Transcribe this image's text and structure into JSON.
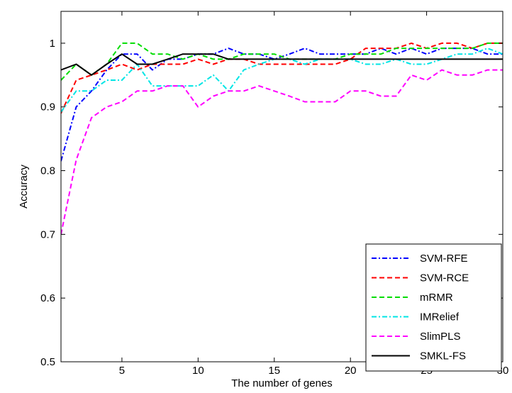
{
  "chart_data": {
    "type": "line",
    "xlabel": "The number of genes",
    "ylabel": "Accuracy",
    "xlim": [
      1,
      30
    ],
    "ylim": [
      0.5,
      1.05
    ],
    "xticks": [
      5,
      10,
      15,
      20,
      25,
      30
    ],
    "yticks": [
      0.5,
      0.6,
      0.7,
      0.8,
      0.9,
      1
    ],
    "ytick_labels": [
      "0.5",
      "0.6",
      "0.7",
      "0.8",
      "0.9",
      "1"
    ],
    "grid": false,
    "legend_position": "bottom-right",
    "x": [
      1,
      2,
      3,
      4,
      5,
      6,
      7,
      8,
      9,
      10,
      11,
      12,
      13,
      14,
      15,
      16,
      17,
      18,
      19,
      20,
      21,
      22,
      23,
      24,
      25,
      26,
      27,
      28,
      29,
      30
    ],
    "series": [
      {
        "name": "SVM-RFE",
        "color": "#0000ff",
        "dash": "dashdot",
        "values": [
          0.815,
          0.9,
          0.925,
          0.958,
          0.983,
          0.983,
          0.958,
          0.975,
          0.975,
          0.983,
          0.983,
          0.992,
          0.983,
          0.983,
          0.975,
          0.983,
          0.992,
          0.983,
          0.983,
          0.983,
          0.983,
          0.992,
          0.983,
          0.992,
          0.983,
          0.992,
          0.992,
          0.992,
          0.983,
          0.983
        ]
      },
      {
        "name": "SVM-RCE",
        "color": "#ff0000",
        "dash": "dashed",
        "values": [
          0.89,
          0.942,
          0.95,
          0.958,
          0.967,
          0.958,
          0.967,
          0.967,
          0.967,
          0.975,
          0.967,
          0.975,
          0.975,
          0.967,
          0.967,
          0.967,
          0.967,
          0.967,
          0.967,
          0.975,
          0.992,
          0.992,
          0.992,
          1.0,
          0.992,
          1.0,
          1.0,
          0.992,
          1.0,
          1.0
        ]
      },
      {
        "name": "mRMR",
        "color": "#00dd00",
        "dash": "dashed",
        "values": [
          0.942,
          0.967,
          0.95,
          0.967,
          1.0,
          1.0,
          0.983,
          0.983,
          0.975,
          0.983,
          0.975,
          0.975,
          0.983,
          0.983,
          0.983,
          0.975,
          0.975,
          0.975,
          0.975,
          0.983,
          0.983,
          0.983,
          0.992,
          0.992,
          0.992,
          0.992,
          0.992,
          0.992,
          1.0,
          1.0
        ]
      },
      {
        "name": "IMRelief",
        "color": "#00e5e5",
        "dash": "dashdot",
        "values": [
          0.892,
          0.925,
          0.925,
          0.942,
          0.942,
          0.967,
          0.933,
          0.933,
          0.933,
          0.933,
          0.95,
          0.925,
          0.958,
          0.967,
          0.975,
          0.975,
          0.967,
          0.975,
          0.975,
          0.975,
          0.967,
          0.967,
          0.975,
          0.967,
          0.967,
          0.975,
          0.983,
          0.983,
          0.992,
          0.983
        ]
      },
      {
        "name": "SlimPLS",
        "color": "#ff00ff",
        "dash": "dashed",
        "values": [
          0.7,
          0.817,
          0.883,
          0.9,
          0.908,
          0.925,
          0.925,
          0.933,
          0.933,
          0.9,
          0.917,
          0.925,
          0.925,
          0.933,
          0.925,
          0.917,
          0.908,
          0.908,
          0.908,
          0.925,
          0.925,
          0.917,
          0.917,
          0.95,
          0.942,
          0.958,
          0.95,
          0.95,
          0.958,
          0.958
        ]
      },
      {
        "name": "SMKL-FS",
        "color": "#000000",
        "dash": "solid",
        "values": [
          0.958,
          0.967,
          0.95,
          0.967,
          0.983,
          0.967,
          0.967,
          0.975,
          0.983,
          0.983,
          0.983,
          0.975,
          0.975,
          0.975,
          0.975,
          0.975,
          0.975,
          0.975,
          0.975,
          0.975,
          0.975,
          0.975,
          0.975,
          0.975,
          0.975,
          0.975,
          0.975,
          0.975,
          0.975,
          0.975
        ]
      }
    ]
  }
}
